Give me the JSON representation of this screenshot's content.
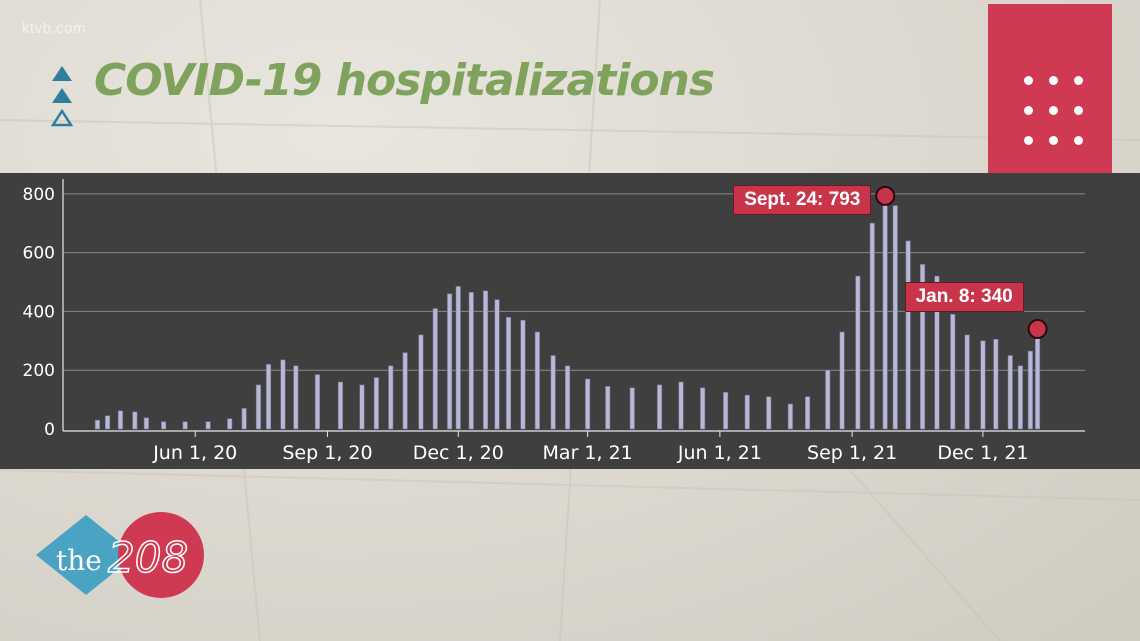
{
  "brand": "ktvb.com",
  "title": "COVID-19 hospitalizations",
  "logo_text": "the208",
  "colors": {
    "title": "#7fa25d",
    "accent_red": "#cf3a52",
    "triangle": "#2e7ea0",
    "bar": "#b8b8d2",
    "panel": "#3f3f3f"
  },
  "chart_data": {
    "type": "bar",
    "title": "COVID-19 hospitalizations",
    "xlabel": "",
    "ylabel": "",
    "ylim": [
      0,
      830
    ],
    "y_ticks": [
      0,
      200,
      400,
      600,
      800
    ],
    "x_range": [
      "2020-03-01",
      "2022-02-10"
    ],
    "x_ticks": [
      {
        "date": "2020-06-01",
        "label": "Jun 1, 20"
      },
      {
        "date": "2020-09-01",
        "label": "Sep 1, 20"
      },
      {
        "date": "2020-12-01",
        "label": "Dec 1, 20"
      },
      {
        "date": "2021-03-01",
        "label": "Mar 1, 21"
      },
      {
        "date": "2021-06-01",
        "label": "Jun 1, 21"
      },
      {
        "date": "2021-09-01",
        "label": "Sep 1, 21"
      },
      {
        "date": "2021-12-01",
        "label": "Dec 1, 21"
      }
    ],
    "series": [
      {
        "values": [
          [
            "2020-03-25",
            30
          ],
          [
            "2020-04-01",
            45
          ],
          [
            "2020-04-10",
            62
          ],
          [
            "2020-04-20",
            58
          ],
          [
            "2020-04-28",
            38
          ],
          [
            "2020-05-10",
            25
          ],
          [
            "2020-05-25",
            25
          ],
          [
            "2020-06-10",
            25
          ],
          [
            "2020-06-25",
            35
          ],
          [
            "2020-07-05",
            70
          ],
          [
            "2020-07-15",
            150
          ],
          [
            "2020-07-22",
            220
          ],
          [
            "2020-08-01",
            235
          ],
          [
            "2020-08-10",
            215
          ],
          [
            "2020-08-25",
            185
          ],
          [
            "2020-09-10",
            160
          ],
          [
            "2020-09-25",
            150
          ],
          [
            "2020-10-05",
            175
          ],
          [
            "2020-10-15",
            215
          ],
          [
            "2020-10-25",
            260
          ],
          [
            "2020-11-05",
            320
          ],
          [
            "2020-11-15",
            410
          ],
          [
            "2020-11-25",
            460
          ],
          [
            "2020-12-01",
            485
          ],
          [
            "2020-12-10",
            465
          ],
          [
            "2020-12-20",
            470
          ],
          [
            "2020-12-28",
            440
          ],
          [
            "2021-01-05",
            380
          ],
          [
            "2021-01-15",
            370
          ],
          [
            "2021-01-25",
            330
          ],
          [
            "2021-02-05",
            250
          ],
          [
            "2021-02-15",
            215
          ],
          [
            "2021-03-01",
            170
          ],
          [
            "2021-03-15",
            145
          ],
          [
            "2021-04-01",
            140
          ],
          [
            "2021-04-20",
            150
          ],
          [
            "2021-05-05",
            160
          ],
          [
            "2021-05-20",
            140
          ],
          [
            "2021-06-05",
            125
          ],
          [
            "2021-06-20",
            115
          ],
          [
            "2021-07-05",
            110
          ],
          [
            "2021-07-20",
            85
          ],
          [
            "2021-08-01",
            110
          ],
          [
            "2021-08-15",
            200
          ],
          [
            "2021-08-25",
            330
          ],
          [
            "2021-09-05",
            520
          ],
          [
            "2021-09-15",
            700
          ],
          [
            "2021-09-24",
            793
          ],
          [
            "2021-10-01",
            760
          ],
          [
            "2021-10-10",
            640
          ],
          [
            "2021-10-20",
            560
          ],
          [
            "2021-10-30",
            520
          ],
          [
            "2021-11-10",
            390
          ],
          [
            "2021-11-20",
            320
          ],
          [
            "2021-12-01",
            300
          ],
          [
            "2021-12-10",
            305
          ],
          [
            "2021-12-20",
            250
          ],
          [
            "2021-12-27",
            215
          ],
          [
            "2022-01-03",
            265
          ],
          [
            "2022-01-08",
            340
          ]
        ]
      }
    ],
    "annotations": [
      {
        "date": "2021-09-24",
        "value": 793,
        "text": "Sept. 24: 793"
      },
      {
        "date": "2022-01-08",
        "value": 340,
        "text": "Jan. 8: 340"
      }
    ]
  }
}
